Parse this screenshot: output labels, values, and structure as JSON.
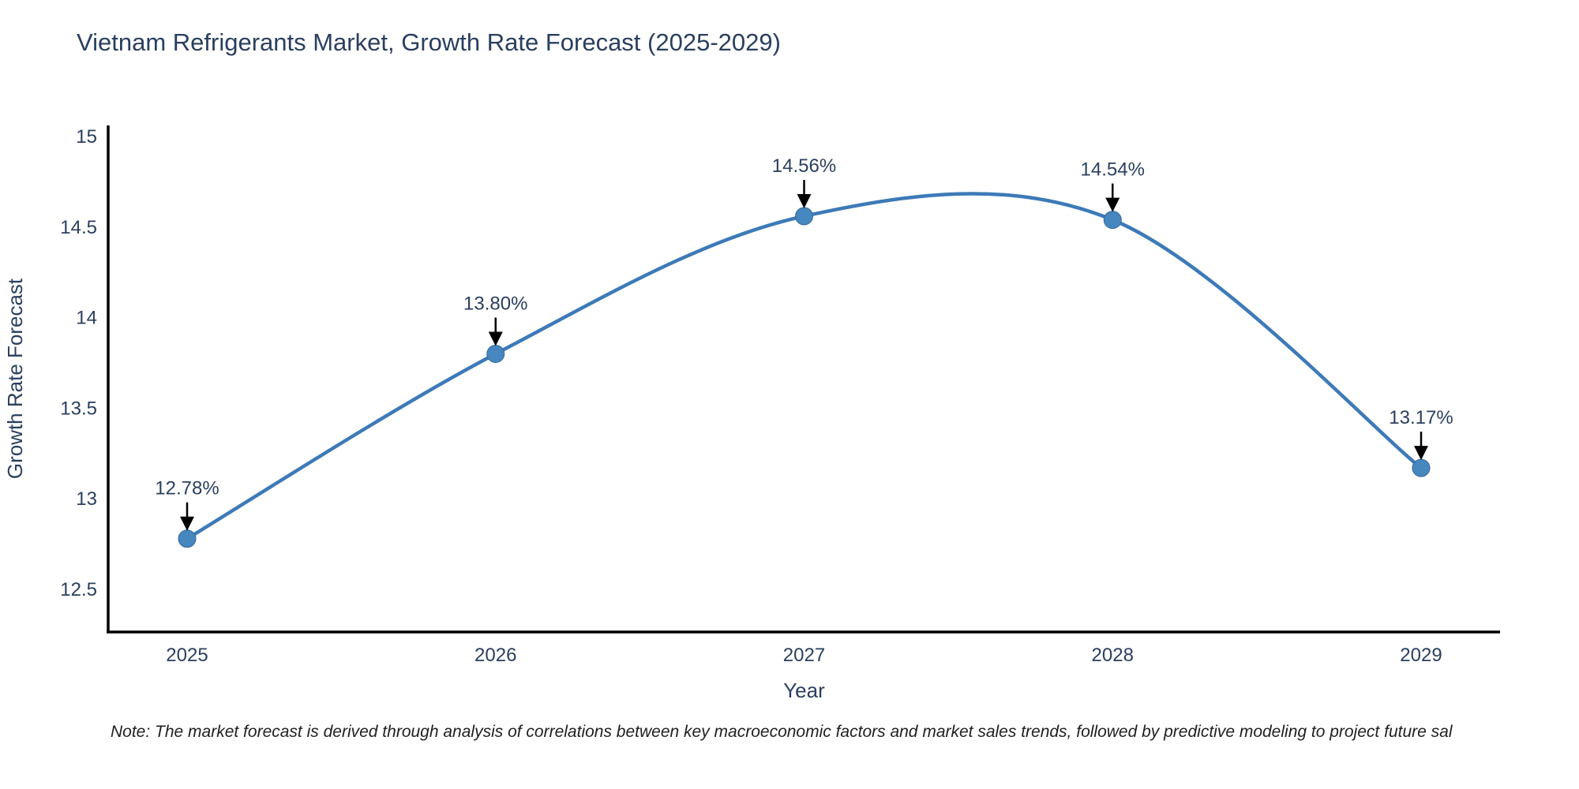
{
  "note": "Note: The market forecast is derived through analysis of correlations between key macroeconomic factors and market sales trends, followed by predictive modeling to project future sal",
  "colors": {
    "line": "#3d7ab8",
    "marker_fill": "#4687bf",
    "marker_stroke": "#34689c",
    "axis": "#000000",
    "text": "#2a3f5f",
    "annotation_arrow": "#000000"
  },
  "chart_data": {
    "type": "line",
    "title": "Vietnam Refrigerants Market, Growth Rate Forecast (2025-2029)",
    "xlabel": "Year",
    "ylabel": "Growth Rate Forecast",
    "x": [
      2025,
      2026,
      2027,
      2028,
      2029
    ],
    "values": [
      12.78,
      13.8,
      14.56,
      14.54,
      13.17
    ],
    "point_labels": [
      "12.78%",
      "13.80%",
      "14.56%",
      "14.54%",
      "13.17%"
    ],
    "xticks": [
      "2025",
      "2026",
      "2027",
      "2028",
      "2029"
    ],
    "yticks": [
      12.5,
      13,
      13.5,
      14,
      14.5,
      15
    ],
    "ytick_labels": [
      "12.5",
      "13",
      "13.5",
      "14",
      "14.5",
      "15"
    ],
    "ylim": [
      12.26,
      15.06
    ],
    "line_shape": "spline",
    "grid": false,
    "legend_position": "none",
    "annotations": "value labels with downward arrows at each point"
  }
}
